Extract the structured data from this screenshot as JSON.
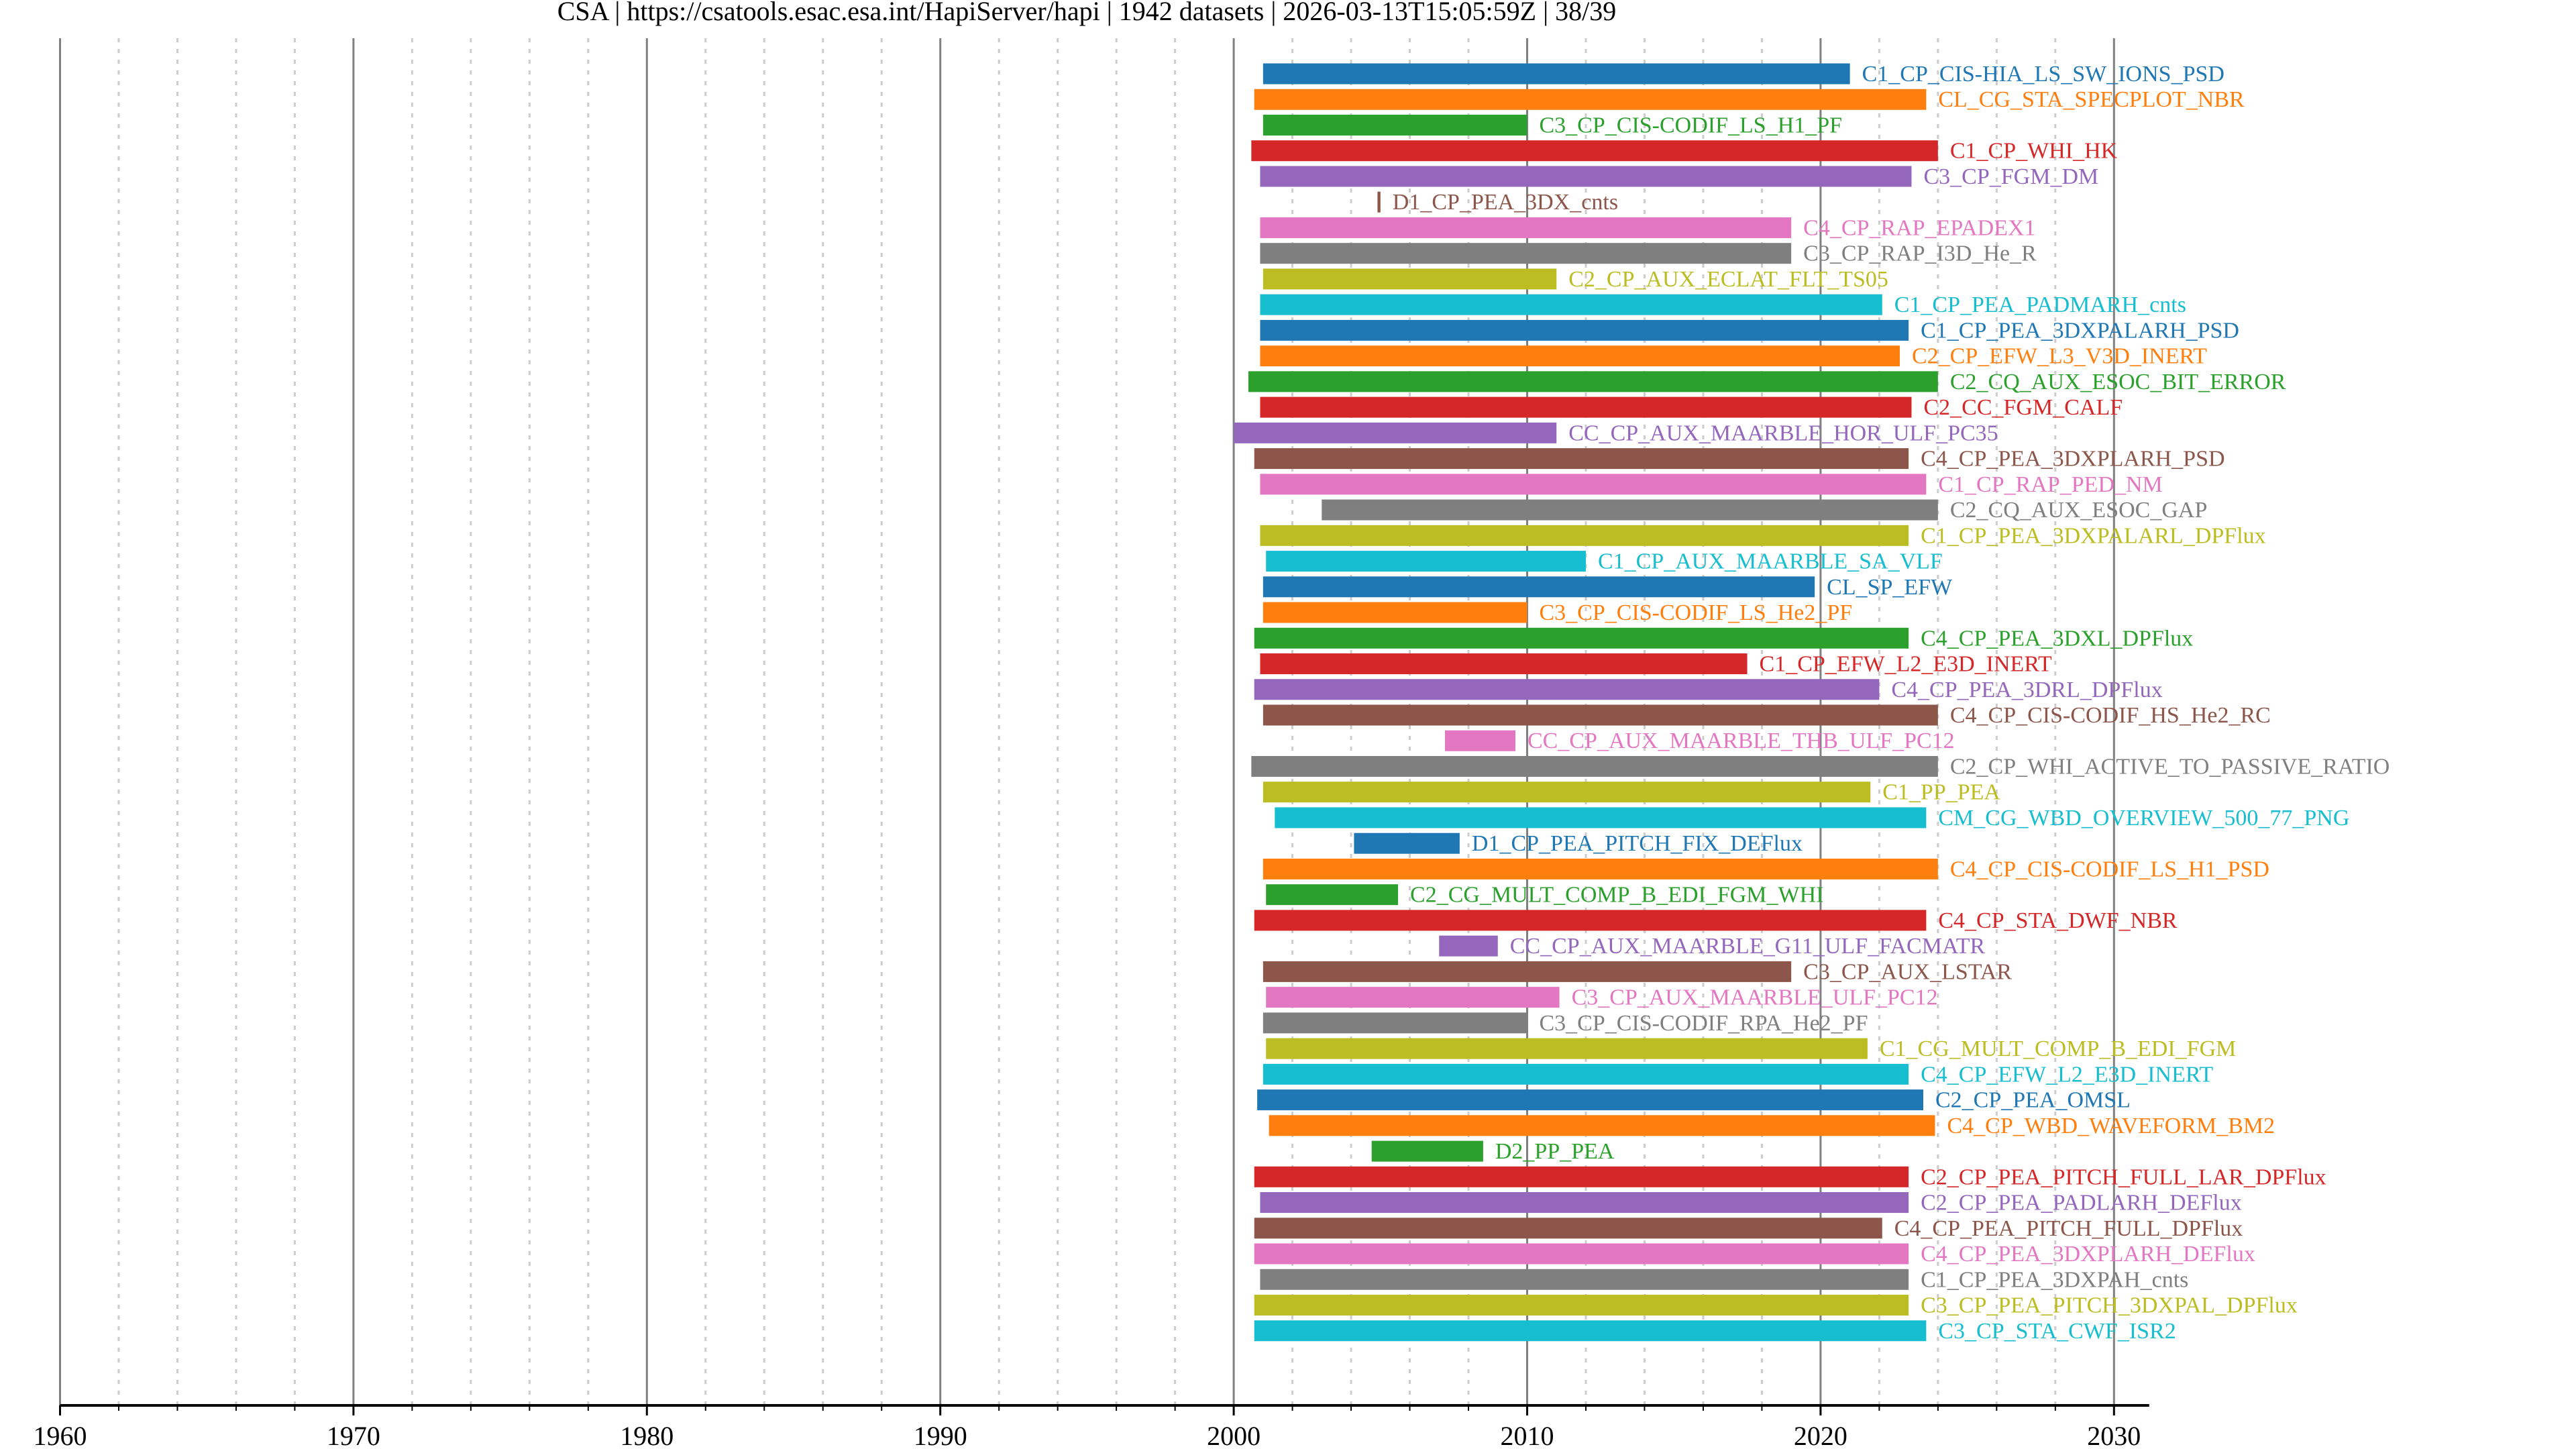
{
  "chart_data": {
    "type": "bar",
    "orientation": "horizontal-timeline",
    "title": "CSA | https://csatools.esac.esa.int/HapiServer/hapi | 1942 datasets | 2026-03-13T15:05:59Z | 38/39",
    "xlabel": "",
    "ylabel": "",
    "xlim": [
      1960,
      2031.2
    ],
    "x_ticks": [
      1960,
      1970,
      1980,
      1990,
      2000,
      2010,
      2020,
      2030
    ],
    "x_tick_labels": [
      "1960",
      "1970",
      "1980",
      "1990",
      "2000",
      "2010",
      "2020",
      "2030"
    ],
    "minor_tick_step": 2,
    "grid": true,
    "legend": "none",
    "colors": [
      "#1f77b4",
      "#ff7f0e",
      "#2ca02c",
      "#d62728",
      "#9467bd",
      "#8c564b",
      "#e377c2",
      "#7f7f7f",
      "#bcbd22",
      "#17becf"
    ],
    "datasets": [
      {
        "name": "C1_CP_CIS-HIA_LS_SW_IONS_PSD",
        "start": 2001.0,
        "end": 2021.0
      },
      {
        "name": "CL_CG_STA_SPECPLOT_NBR",
        "start": 2000.7,
        "end": 2023.6
      },
      {
        "name": "C3_CP_CIS-CODIF_LS_H1_PF",
        "start": 2001.0,
        "end": 2010.0
      },
      {
        "name": "C1_CP_WHI_HK",
        "start": 2000.6,
        "end": 2024.0
      },
      {
        "name": "C3_CP_FGM_DM",
        "start": 2000.9,
        "end": 2023.1
      },
      {
        "name": "D1_CP_PEA_3DX_cnts",
        "start": 2004.9,
        "end": 2005.0
      },
      {
        "name": "C4_CP_RAP_EPADEX1",
        "start": 2000.9,
        "end": 2019.0
      },
      {
        "name": "C3_CP_RAP_I3D_He_R",
        "start": 2000.9,
        "end": 2019.0
      },
      {
        "name": "C2_CP_AUX_ECLAT_FLT_TS05",
        "start": 2001.0,
        "end": 2011.0
      },
      {
        "name": "C1_CP_PEA_PADMARH_cnts",
        "start": 2000.9,
        "end": 2022.1
      },
      {
        "name": "C1_CP_PEA_3DXPALARH_PSD",
        "start": 2000.9,
        "end": 2023.0
      },
      {
        "name": "C2_CP_EFW_L3_V3D_INERT",
        "start": 2000.9,
        "end": 2022.7
      },
      {
        "name": "C2_CQ_AUX_ESOC_BIT_ERROR",
        "start": 2000.5,
        "end": 2024.0
      },
      {
        "name": "C2_CC_FGM_CALF",
        "start": 2000.9,
        "end": 2023.1
      },
      {
        "name": "CC_CP_AUX_MAARBLE_HOR_ULF_PC35",
        "start": 2000.0,
        "end": 2011.0
      },
      {
        "name": "C4_CP_PEA_3DXPLARH_PSD",
        "start": 2000.7,
        "end": 2023.0
      },
      {
        "name": "C1_CP_RAP_PED_NM",
        "start": 2000.9,
        "end": 2023.6
      },
      {
        "name": "C2_CQ_AUX_ESOC_GAP",
        "start": 2003.0,
        "end": 2024.0
      },
      {
        "name": "C1_CP_PEA_3DXPALARL_DPFlux",
        "start": 2000.9,
        "end": 2023.0
      },
      {
        "name": "C1_CP_AUX_MAARBLE_SA_VLF",
        "start": 2001.1,
        "end": 2012.0
      },
      {
        "name": "CL_SP_EFW",
        "start": 2001.0,
        "end": 2019.8
      },
      {
        "name": "C3_CP_CIS-CODIF_LS_He2_PF",
        "start": 2001.0,
        "end": 2010.0
      },
      {
        "name": "C4_CP_PEA_3DXL_DPFlux",
        "start": 2000.7,
        "end": 2023.0
      },
      {
        "name": "C1_CP_EFW_L2_E3D_INERT",
        "start": 2000.9,
        "end": 2017.5
      },
      {
        "name": "C4_CP_PEA_3DRL_DPFlux",
        "start": 2000.7,
        "end": 2022.0
      },
      {
        "name": "C4_CP_CIS-CODIF_HS_He2_RC",
        "start": 2001.0,
        "end": 2024.0
      },
      {
        "name": "CC_CP_AUX_MAARBLE_THB_ULF_PC12",
        "start": 2007.2,
        "end": 2009.6
      },
      {
        "name": "C2_CP_WHI_ACTIVE_TO_PASSIVE_RATIO",
        "start": 2000.6,
        "end": 2024.0
      },
      {
        "name": "C1_PP_PEA",
        "start": 2001.0,
        "end": 2021.7
      },
      {
        "name": "CM_CG_WBD_OVERVIEW_500_77_PNG",
        "start": 2001.4,
        "end": 2023.6
      },
      {
        "name": "D1_CP_PEA_PITCH_FIX_DEFlux",
        "start": 2004.1,
        "end": 2007.7
      },
      {
        "name": "C4_CP_CIS-CODIF_LS_H1_PSD",
        "start": 2001.0,
        "end": 2024.0
      },
      {
        "name": "C2_CG_MULT_COMP_B_EDI_FGM_WHI",
        "start": 2001.1,
        "end": 2005.6
      },
      {
        "name": "C4_CP_STA_DWF_NBR",
        "start": 2000.7,
        "end": 2023.6
      },
      {
        "name": "CC_CP_AUX_MAARBLE_G11_ULF_FACMATR",
        "start": 2007.0,
        "end": 2009.0
      },
      {
        "name": "C3_CP_AUX_LSTAR",
        "start": 2001.0,
        "end": 2019.0
      },
      {
        "name": "C3_CP_AUX_MAARBLE_ULF_PC12",
        "start": 2001.1,
        "end": 2011.1
      },
      {
        "name": "C3_CP_CIS-CODIF_RPA_He2_PF",
        "start": 2001.0,
        "end": 2010.0
      },
      {
        "name": "C1_CG_MULT_COMP_B_EDI_FGM",
        "start": 2001.1,
        "end": 2021.6
      },
      {
        "name": "C4_CP_EFW_L2_E3D_INERT",
        "start": 2001.0,
        "end": 2023.0
      },
      {
        "name": "C2_CP_PEA_OMSL",
        "start": 2000.8,
        "end": 2023.5
      },
      {
        "name": "C4_CP_WBD_WAVEFORM_BM2",
        "start": 2001.2,
        "end": 2023.9
      },
      {
        "name": "D2_PP_PEA",
        "start": 2004.7,
        "end": 2008.5
      },
      {
        "name": "C2_CP_PEA_PITCH_FULL_LAR_DPFlux",
        "start": 2000.7,
        "end": 2023.0
      },
      {
        "name": "C2_CP_PEA_PADLARH_DEFlux",
        "start": 2000.9,
        "end": 2023.0
      },
      {
        "name": "C4_CP_PEA_PITCH_FULL_DPFlux",
        "start": 2000.7,
        "end": 2022.1
      },
      {
        "name": "C4_CP_PEA_3DXPLARH_DEFlux",
        "start": 2000.7,
        "end": 2023.0
      },
      {
        "name": "C1_CP_PEA_3DXPAH_cnts",
        "start": 2000.9,
        "end": 2023.0
      },
      {
        "name": "C3_CP_PEA_PITCH_3DXPAL_DPFlux",
        "start": 2000.7,
        "end": 2023.0
      },
      {
        "name": "C3_CP_STA_CWF_ISR2",
        "start": 2000.7,
        "end": 2023.6
      }
    ]
  }
}
